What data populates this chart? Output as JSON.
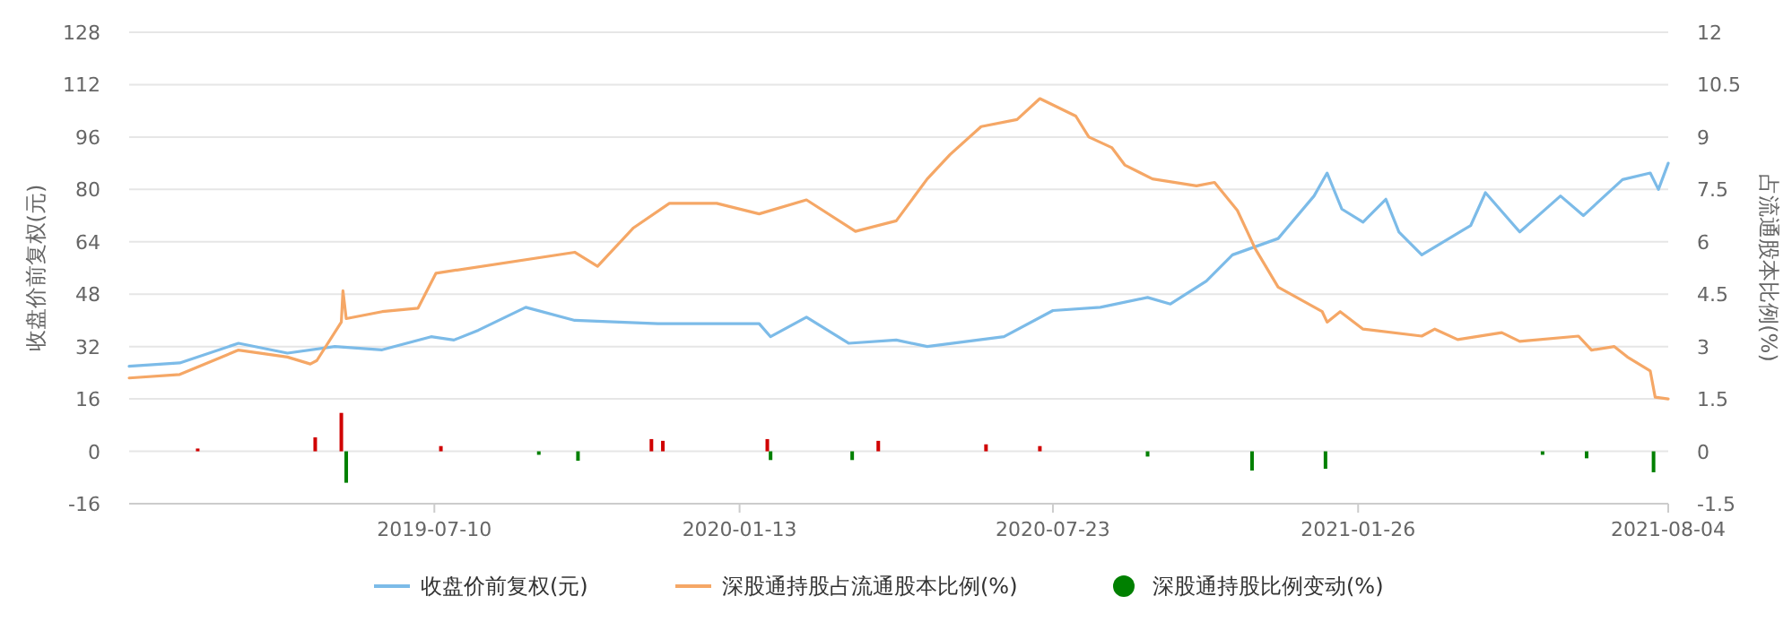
{
  "chart_data": {
    "type": "line",
    "ylabel": "收盘价前复权(元)",
    "y2label": "占流通股本比例(%)",
    "xlim": [
      "2019-01-04",
      "2021-08-04"
    ],
    "xticks": [
      "2019-07-10",
      "2020-01-13",
      "2020-07-23",
      "2021-01-26",
      "2021-08-04"
    ],
    "ylim": [
      -16,
      128
    ],
    "yticks": [
      -16,
      0,
      16,
      32,
      48,
      64,
      80,
      96,
      112,
      128
    ],
    "y2lim": [
      -1.5,
      12
    ],
    "y2ticks": [
      -1.5,
      0,
      1.5,
      3,
      4.5,
      6,
      7.5,
      9,
      10.5,
      12
    ],
    "grid": "y",
    "legend": "bottom",
    "series": [
      {
        "name": "收盘价前复权(元)",
        "color": "#7cbbe8",
        "x": [
          "2019-01-04",
          "2019-02-04",
          "2019-03-12",
          "2019-04-11",
          "2019-05-10",
          "2019-06-08",
          "2019-07-08",
          "2019-07-22",
          "2019-08-06",
          "2019-09-04",
          "2019-10-04",
          "2019-11-24",
          "2020-01-25",
          "2020-02-01",
          "2020-02-23",
          "2020-03-20",
          "2020-04-18",
          "2020-05-07",
          "2020-06-23",
          "2020-07-23",
          "2020-08-21",
          "2020-09-19",
          "2020-10-03",
          "2020-10-25",
          "2020-11-10",
          "2020-12-08",
          "2020-12-30",
          "2021-01-07",
          "2021-01-16",
          "2021-01-29",
          "2021-02-12",
          "2021-02-20",
          "2021-03-06",
          "2021-04-05",
          "2021-04-14",
          "2021-05-05",
          "2021-05-30",
          "2021-06-13",
          "2021-07-07",
          "2021-07-24",
          "2021-07-29",
          "2021-08-04"
        ],
        "values": [
          26,
          27,
          33,
          30,
          32,
          31,
          35,
          34,
          37,
          44,
          40,
          39,
          39,
          35,
          41,
          33,
          34,
          32,
          35,
          43,
          44,
          47,
          45,
          52,
          60,
          65,
          78,
          85,
          74,
          70,
          77,
          67,
          60,
          69,
          79,
          67,
          78,
          72,
          83,
          85,
          80,
          88
        ]
      },
      {
        "name": "深股通持股占流通股本比例(%)",
        "axis": "y2",
        "color": "#f5a766",
        "x": [
          "2019-01-04",
          "2019-02-04",
          "2019-03-12",
          "2019-04-11",
          "2019-04-25",
          "2019-04-29",
          "2019-05-14",
          "2019-05-15",
          "2019-05-17",
          "2019-06-08",
          "2019-06-30",
          "2019-07-11",
          "2019-10-04",
          "2019-10-18",
          "2019-11-09",
          "2019-12-01",
          "2019-12-30",
          "2020-01-25",
          "2020-02-23",
          "2020-03-24",
          "2020-04-18",
          "2020-05-07",
          "2020-05-21",
          "2020-06-09",
          "2020-07-01",
          "2020-07-15",
          "2020-08-06",
          "2020-08-14",
          "2020-08-28",
          "2020-09-05",
          "2020-09-22",
          "2020-10-19",
          "2020-10-30",
          "2020-11-13",
          "2020-11-24",
          "2020-12-08",
          "2021-01-04",
          "2021-01-07",
          "2021-01-15",
          "2021-01-29",
          "2021-03-06",
          "2021-03-14",
          "2021-03-28",
          "2021-04-24",
          "2021-05-05",
          "2021-06-10",
          "2021-06-18",
          "2021-07-02",
          "2021-07-10",
          "2021-07-24",
          "2021-07-27",
          "2021-08-04"
        ],
        "values": [
          2.1,
          2.2,
          2.9,
          2.7,
          2.5,
          2.6,
          3.7,
          4.6,
          3.8,
          4.0,
          4.1,
          5.1,
          5.7,
          5.3,
          6.4,
          7.1,
          7.1,
          6.8,
          7.2,
          6.3,
          6.6,
          7.8,
          8.5,
          9.3,
          9.5,
          10.1,
          9.6,
          9.0,
          8.7,
          8.2,
          7.8,
          7.6,
          7.7,
          6.9,
          5.8,
          4.7,
          4.0,
          3.7,
          4.0,
          3.5,
          3.3,
          3.5,
          3.2,
          3.4,
          3.15,
          3.3,
          2.9,
          3.0,
          2.7,
          2.3,
          1.55,
          1.5
        ]
      },
      {
        "name": "深股通持股比例变动(%)",
        "type": "bar",
        "axis": "y2",
        "color": "#008000",
        "x": [
          "2019-02-15",
          "2019-04-28",
          "2019-05-14",
          "2019-05-17",
          "2019-07-14",
          "2019-09-12",
          "2019-10-06",
          "2019-11-20",
          "2019-11-27",
          "2020-01-30",
          "2020-02-01",
          "2020-03-22",
          "2020-04-07",
          "2020-06-12",
          "2020-07-15",
          "2020-09-19",
          "2020-11-22",
          "2021-01-06",
          "2021-05-19",
          "2021-06-15",
          "2021-07-26"
        ],
        "values": [
          0.08,
          0.4,
          1.1,
          -0.9,
          0.15,
          -0.1,
          -0.27,
          0.35,
          0.3,
          0.35,
          -0.25,
          -0.25,
          0.3,
          0.2,
          0.15,
          -0.15,
          -0.55,
          -0.5,
          -0.1,
          -0.2,
          -0.6
        ],
        "colors": [
          "#d00000",
          "#d00000",
          "#d00000",
          "#008000",
          "#d00000",
          "#008000",
          "#008000",
          "#d00000",
          "#d00000",
          "#d00000",
          "#008000",
          "#008000",
          "#d00000",
          "#d00000",
          "#d00000",
          "#008000",
          "#008000",
          "#008000",
          "#008000",
          "#008000",
          "#008000"
        ]
      }
    ]
  }
}
